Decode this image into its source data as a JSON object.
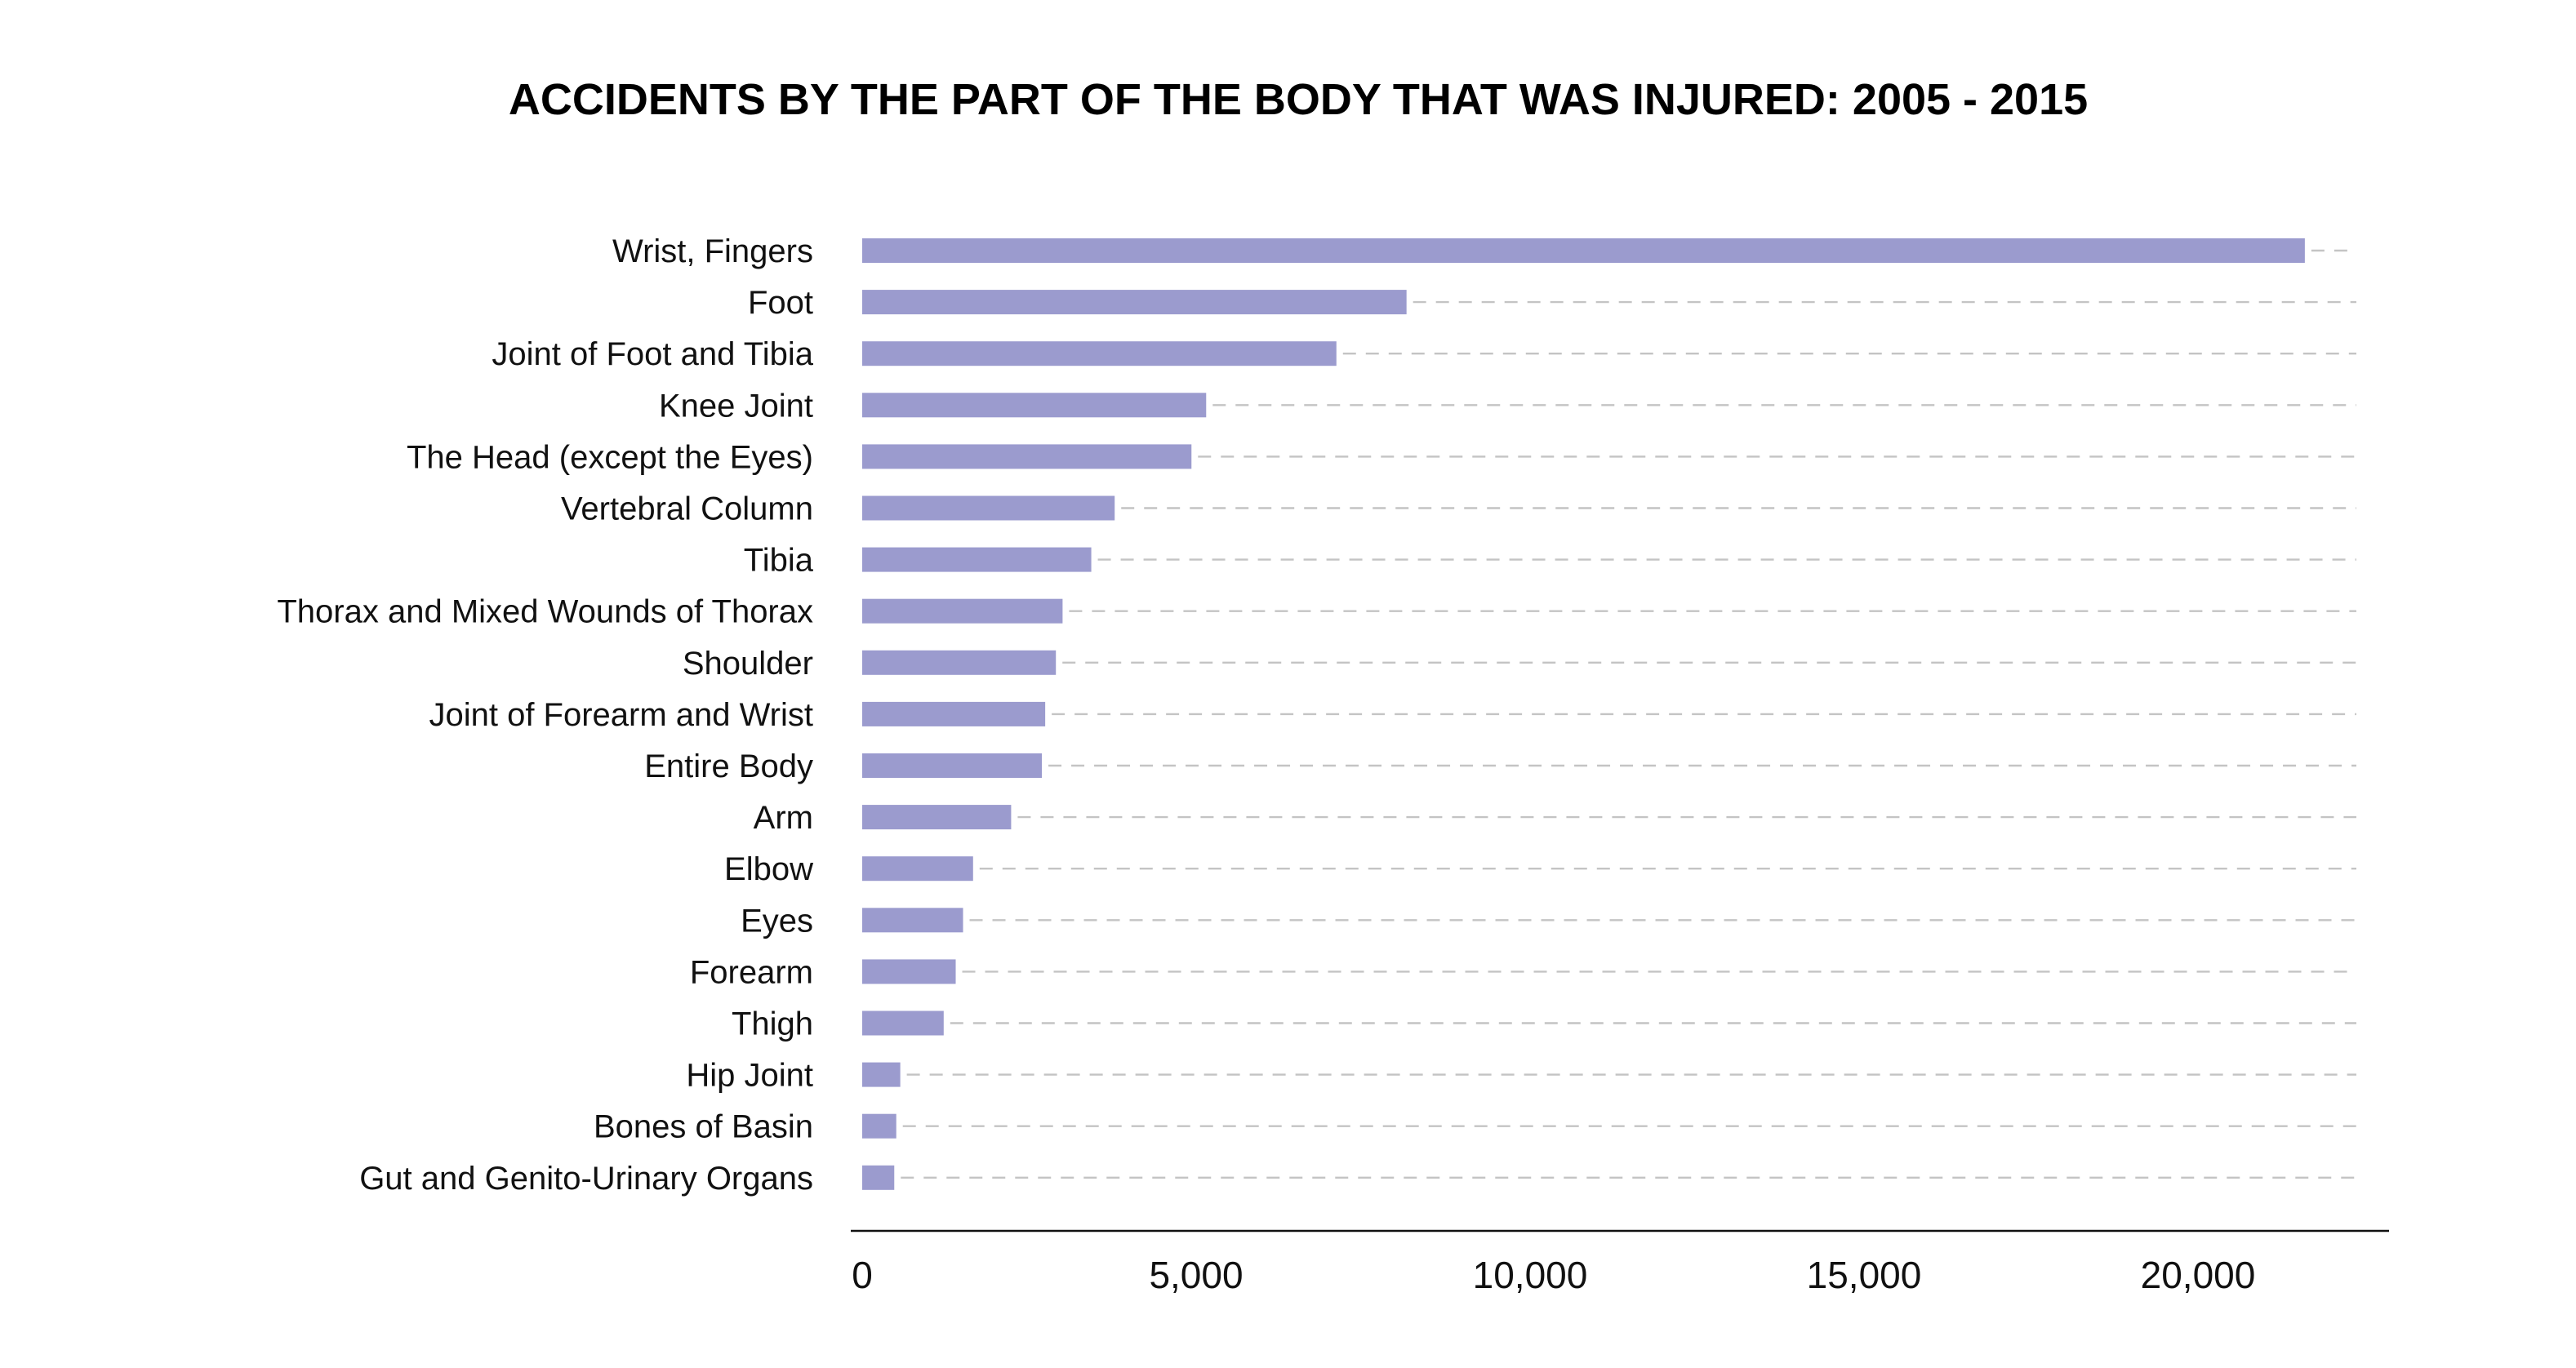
{
  "chart_data": {
    "type": "bar",
    "orientation": "horizontal",
    "title": "ACCIDENTS BY THE PART OF THE BODY THAT WAS INJURED: 2005 - 2015",
    "xlabel": "",
    "ylabel": "",
    "categories": [
      "Wrist, Fingers",
      "Foot",
      "Joint of Foot and Tibia",
      "Knee Joint",
      "The Head (except the Eyes)",
      "Vertebral Column",
      "Tibia",
      "Thorax and Mixed Wounds of Thorax",
      "Shoulder",
      "Joint of Forearm and  Wrist",
      "Entire Body",
      "Arm",
      "Elbow",
      "Eyes",
      "Forearm",
      "Thigh",
      "Hip Joint",
      "Bones of Basin",
      "Gut and Genito-Urinary Organs"
    ],
    "values": [
      21600,
      8150,
      7100,
      5150,
      4930,
      3780,
      3430,
      3000,
      2900,
      2740,
      2690,
      2230,
      1660,
      1510,
      1400,
      1220,
      570,
      510,
      480
    ],
    "xlim": [
      0,
      22500
    ],
    "xticks": [
      0,
      5000,
      10000,
      15000,
      20000
    ],
    "xtick_labels": [
      "0",
      "5,000",
      "10,000",
      "15,000",
      "20,000"
    ],
    "bar_color": "#9b9bce",
    "grid_color": "#c4c4c4",
    "gridlines": "dashed horizontal guide lines behind each bar",
    "legend": "none"
  }
}
